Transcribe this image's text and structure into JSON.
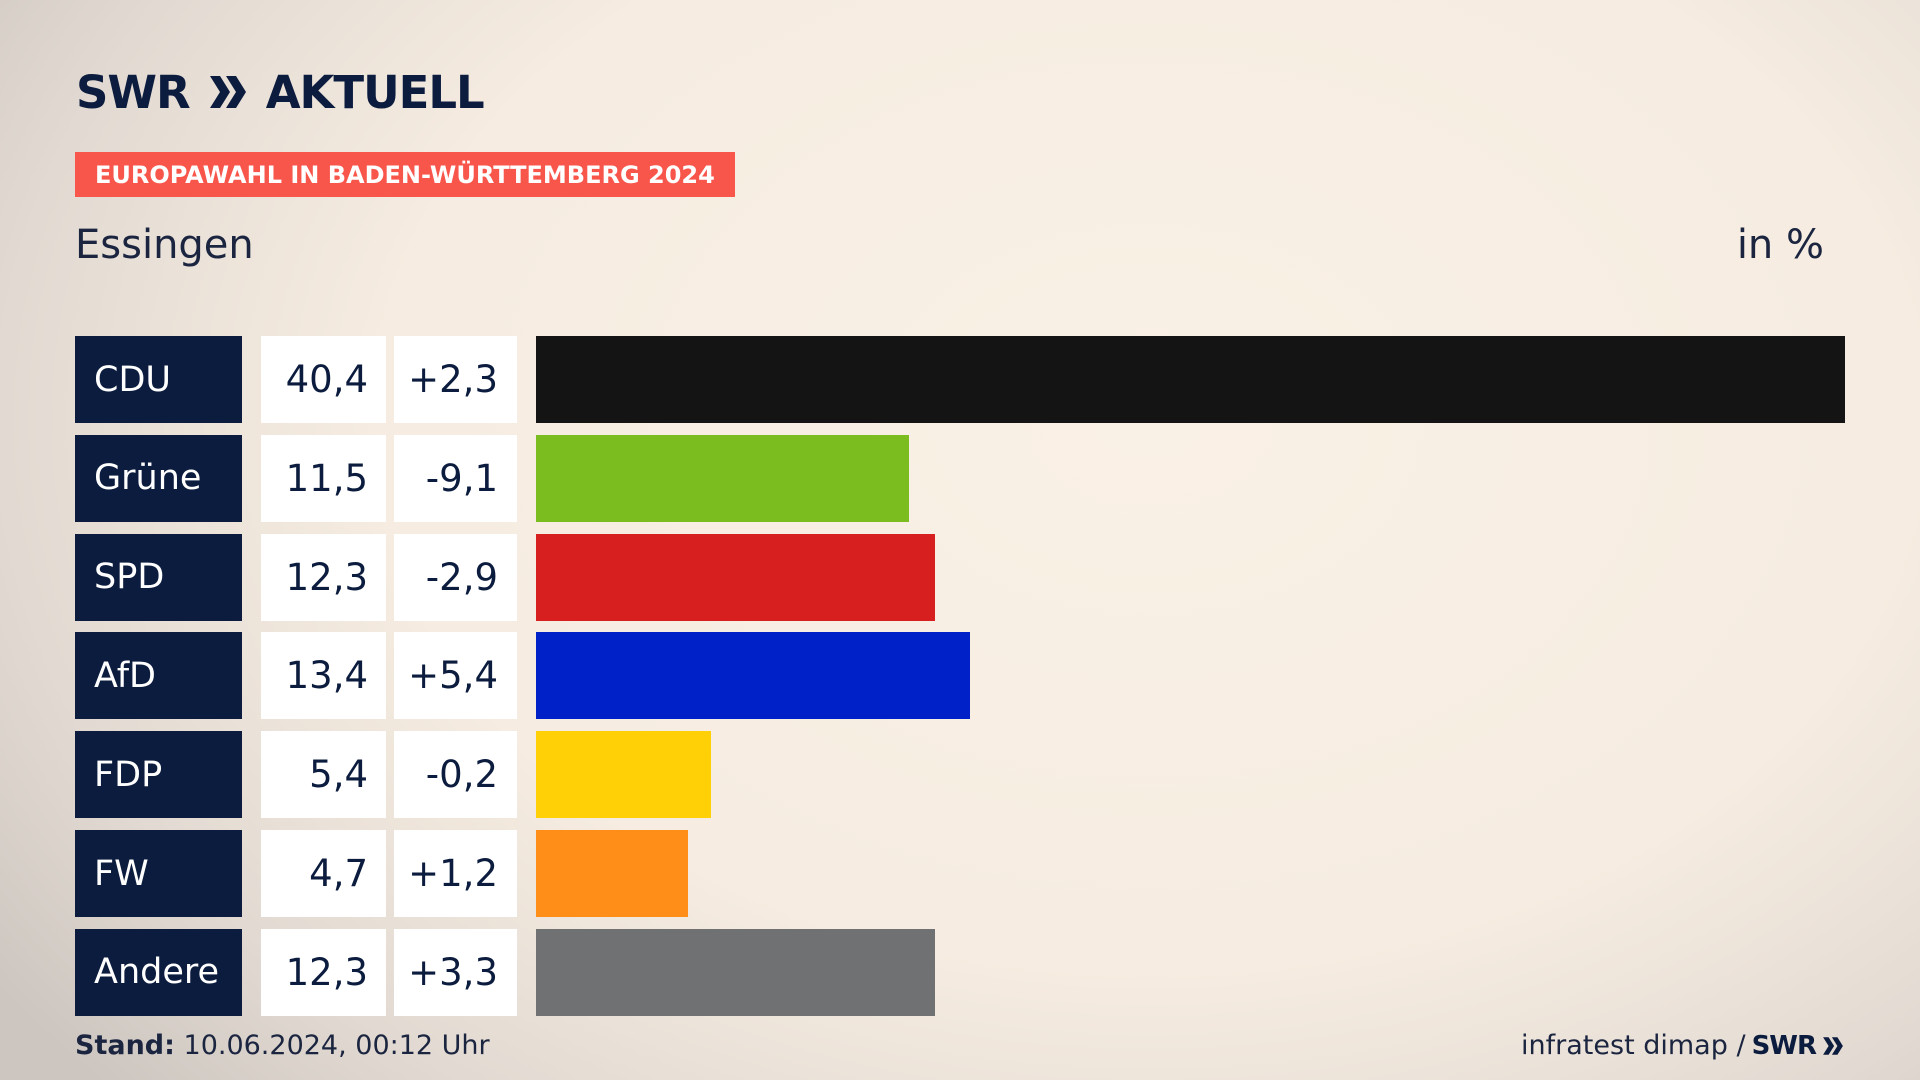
{
  "header": {
    "logo_swr": "SWR",
    "logo_aktuell": "AKTUELL",
    "tag": "EUROPAWAHL IN BADEN-WÜRTTEMBERG 2024",
    "place": "Essingen",
    "unit": "in %"
  },
  "chart_data": {
    "type": "bar",
    "orientation": "horizontal",
    "categories": [
      "CDU",
      "Grüne",
      "SPD",
      "AfD",
      "FDP",
      "FW",
      "Andere"
    ],
    "values": [
      40.4,
      11.5,
      12.3,
      13.4,
      5.4,
      4.7,
      12.3
    ],
    "value_labels": [
      "40,4",
      "11,5",
      "12,3",
      "13,4",
      "5,4",
      "4,7",
      "12,3"
    ],
    "change_labels": [
      "+2,3",
      "-9,1",
      "-2,9",
      "+5,4",
      "-0,2",
      "+1,2",
      "+3,3"
    ],
    "changes": [
      2.3,
      -9.1,
      -2.9,
      5.4,
      -0.2,
      1.2,
      3.3
    ],
    "colors": [
      "#141414",
      "#7bbd1f",
      "#d71f1f",
      "#0021c8",
      "#ffd006",
      "#ff8e18",
      "#707172"
    ],
    "xlim": [
      0,
      40.4
    ],
    "grid": false
  },
  "footer": {
    "stand_label": "Stand:",
    "stand_value": "10.06.2024, 00:12 Uhr",
    "source": "infratest dimap /",
    "logo_swr_small": "SWR"
  }
}
